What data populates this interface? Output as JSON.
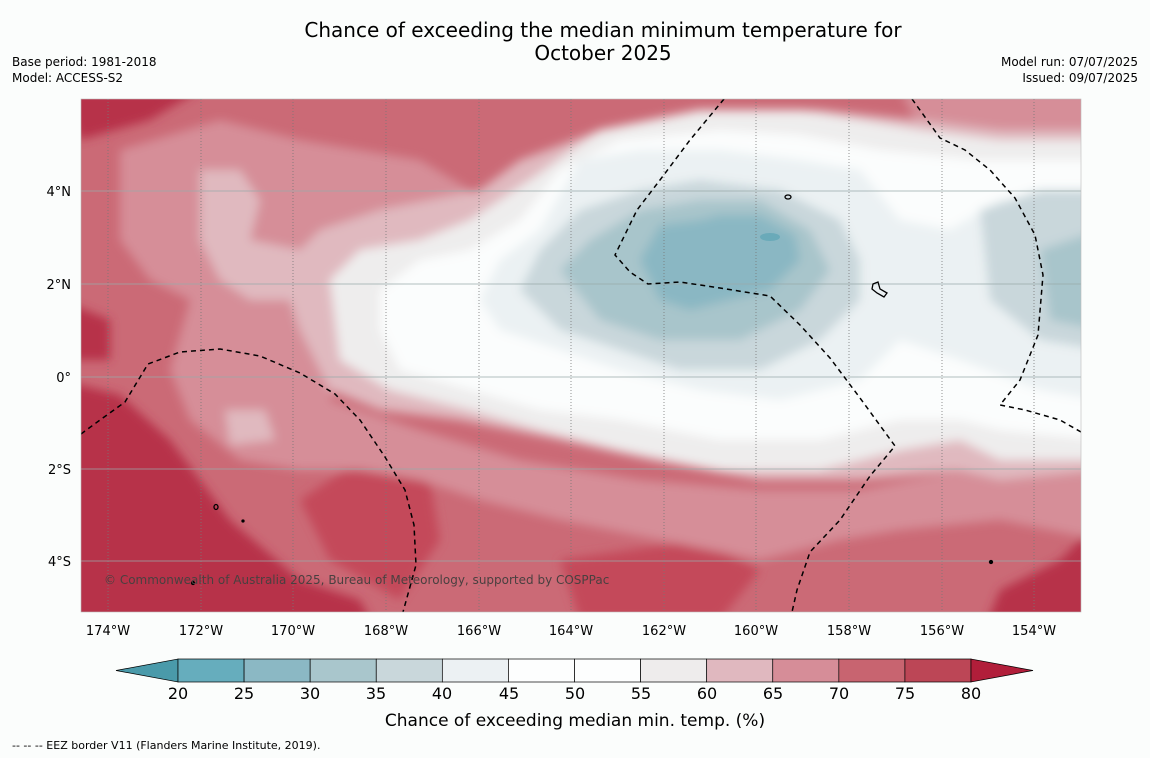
{
  "title": {
    "line1": "Chance of exceeding the median minimum temperature for",
    "line2": "October 2025"
  },
  "meta": {
    "base_period": "Base period: 1981-2018",
    "model": "Model: ACCESS-S2",
    "model_run": "Model run: 07/07/2025",
    "issued": "Issued: 09/07/2025"
  },
  "copyright": "© Commonwealth of Australia 2025, Bureau of Meteorology, supported by COSPPac",
  "axes": {
    "lon_ticks": [
      "174°W",
      "172°W",
      "170°W",
      "168°W",
      "166°W",
      "164°W",
      "162°W",
      "160°W",
      "158°W",
      "156°W",
      "154°W"
    ],
    "lat_ticks": [
      "4°N",
      "2°N",
      "0°",
      "2°S",
      "4°S"
    ]
  },
  "colorbar": {
    "ticks": [
      "20",
      "25",
      "30",
      "35",
      "40",
      "45",
      "50",
      "55",
      "60",
      "65",
      "70",
      "75",
      "80"
    ],
    "label": "Chance of exceeding median min. temp. (%)",
    "colors": [
      "#4a9aaa",
      "#66adbd",
      "#8bb8c4",
      "#a9c6cc",
      "#c9d7db",
      "#ecf1f3",
      "#fdfefe",
      "#fdfefe",
      "#eeecec",
      "#e0b8bf",
      "#d68d98",
      "#c86470",
      "#bc4656",
      "#b11e3a"
    ]
  },
  "footer": "--  --  -- EEZ border V11 (Flanders Marine Institute, 2019)."
}
